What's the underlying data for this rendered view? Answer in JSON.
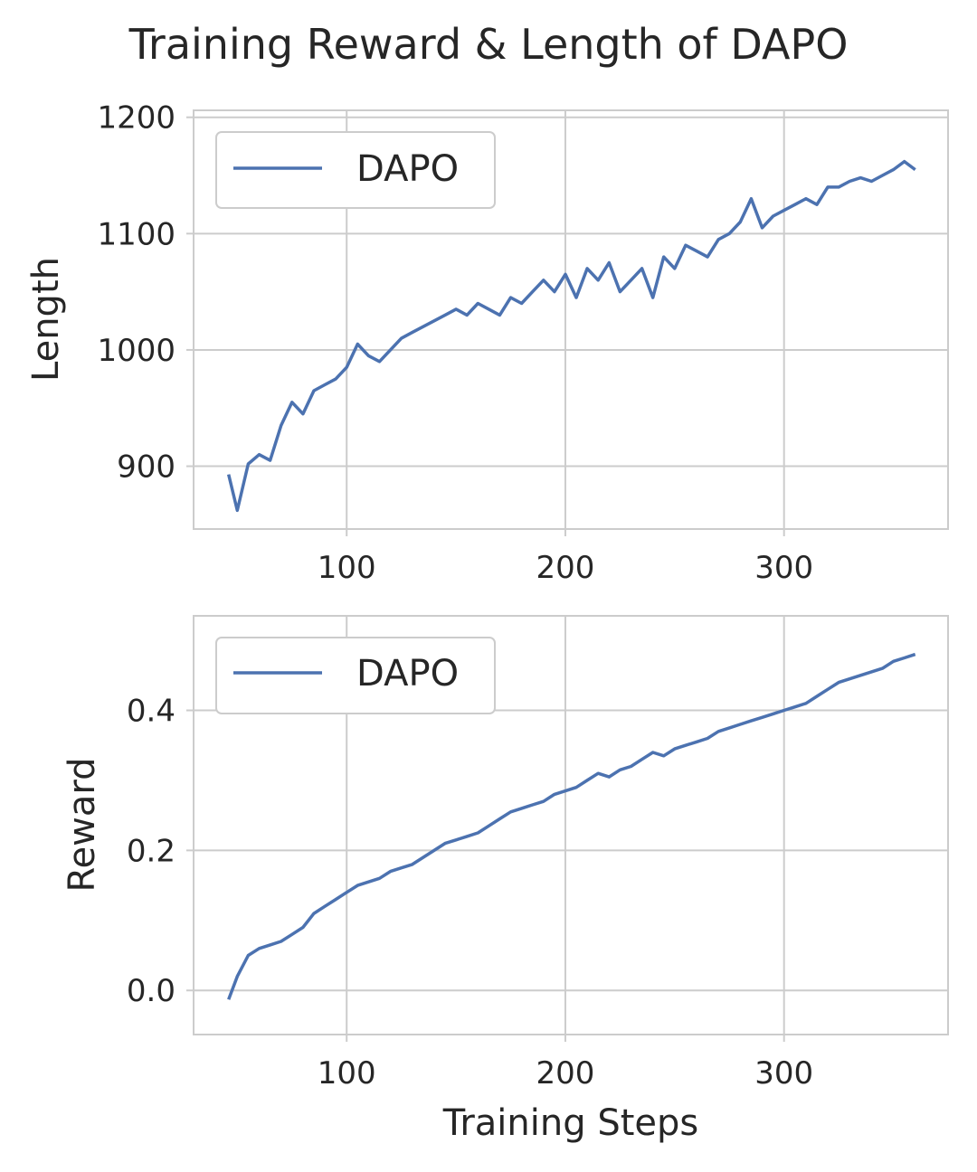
{
  "figure": {
    "title": "Training Reward & Length of DAPO"
  },
  "colors": {
    "series": "#4c72b0",
    "grid": "#cccccc",
    "text": "#262626",
    "legend_border": "#cccccc"
  },
  "chart_data": [
    {
      "type": "line",
      "title": "",
      "xlabel": "",
      "ylabel": "Length",
      "xlim": [
        30,
        375
      ],
      "ylim": [
        846,
        1206
      ],
      "xticks": [
        100,
        200,
        300
      ],
      "yticks": [
        900,
        1000,
        1100,
        1200
      ],
      "xtick_labels": [
        "100",
        "200",
        "300"
      ],
      "ytick_labels": [
        "900",
        "1000",
        "1100",
        "1200"
      ],
      "grid": true,
      "legend": {
        "placement": "upper-left",
        "entries": [
          "DAPO"
        ]
      },
      "series": [
        {
          "name": "DAPO",
          "x": [
            46,
            50,
            55,
            60,
            65,
            70,
            75,
            80,
            85,
            90,
            95,
            100,
            105,
            110,
            115,
            120,
            125,
            130,
            135,
            140,
            145,
            150,
            155,
            160,
            165,
            170,
            175,
            180,
            185,
            190,
            195,
            200,
            205,
            210,
            215,
            220,
            225,
            230,
            235,
            240,
            245,
            250,
            255,
            260,
            265,
            270,
            275,
            280,
            285,
            290,
            295,
            300,
            305,
            310,
            315,
            320,
            325,
            330,
            335,
            340,
            345,
            350,
            355,
            360
          ],
          "y": [
            893,
            862,
            902,
            910,
            905,
            935,
            955,
            945,
            965,
            970,
            975,
            985,
            1005,
            995,
            990,
            1000,
            1010,
            1015,
            1020,
            1025,
            1030,
            1035,
            1030,
            1040,
            1035,
            1030,
            1045,
            1040,
            1050,
            1060,
            1050,
            1065,
            1045,
            1070,
            1060,
            1075,
            1050,
            1060,
            1070,
            1045,
            1080,
            1070,
            1090,
            1085,
            1080,
            1095,
            1100,
            1110,
            1130,
            1105,
            1115,
            1120,
            1125,
            1130,
            1125,
            1140,
            1140,
            1145,
            1148,
            1145,
            1150,
            1155,
            1162,
            1155
          ]
        }
      ]
    },
    {
      "type": "line",
      "title": "",
      "xlabel": "Training Steps",
      "ylabel": "Reward",
      "xlim": [
        30,
        375
      ],
      "ylim": [
        -0.063,
        0.535
      ],
      "xticks": [
        100,
        200,
        300
      ],
      "yticks": [
        0.0,
        0.2,
        0.4
      ],
      "xtick_labels": [
        "100",
        "200",
        "300"
      ],
      "ytick_labels": [
        "0.0",
        "0.2",
        "0.4"
      ],
      "grid": true,
      "legend": {
        "placement": "upper-left",
        "entries": [
          "DAPO"
        ]
      },
      "series": [
        {
          "name": "DAPO",
          "x": [
            46,
            50,
            55,
            60,
            65,
            70,
            75,
            80,
            85,
            90,
            95,
            100,
            105,
            110,
            115,
            120,
            125,
            130,
            135,
            140,
            145,
            150,
            155,
            160,
            165,
            170,
            175,
            180,
            185,
            190,
            195,
            200,
            205,
            210,
            215,
            220,
            225,
            230,
            235,
            240,
            245,
            250,
            255,
            260,
            265,
            270,
            275,
            280,
            285,
            290,
            295,
            300,
            305,
            310,
            315,
            320,
            325,
            330,
            335,
            340,
            345,
            350,
            355,
            360
          ],
          "y": [
            -0.013,
            0.02,
            0.05,
            0.06,
            0.065,
            0.07,
            0.08,
            0.09,
            0.11,
            0.12,
            0.13,
            0.14,
            0.15,
            0.155,
            0.16,
            0.17,
            0.175,
            0.18,
            0.19,
            0.2,
            0.21,
            0.215,
            0.22,
            0.225,
            0.235,
            0.245,
            0.255,
            0.26,
            0.265,
            0.27,
            0.28,
            0.285,
            0.29,
            0.3,
            0.31,
            0.305,
            0.315,
            0.32,
            0.33,
            0.34,
            0.335,
            0.345,
            0.35,
            0.355,
            0.36,
            0.37,
            0.375,
            0.38,
            0.385,
            0.39,
            0.395,
            0.4,
            0.405,
            0.41,
            0.42,
            0.43,
            0.44,
            0.445,
            0.45,
            0.455,
            0.46,
            0.47,
            0.475,
            0.48
          ]
        }
      ]
    }
  ]
}
